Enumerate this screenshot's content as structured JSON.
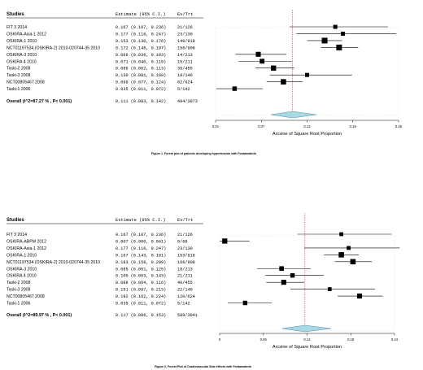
{
  "chart_data": [
    {
      "type": "forest",
      "col_headers": {
        "study": "Studies",
        "estimate": "Estimate (95% C.I.)",
        "evtrt": "Ev/Trt"
      },
      "studies": [
        {
          "name": "FIT 3 2014",
          "ci_text": "0.167 (0.107, 0.236)",
          "evtrt": "21/126",
          "est": 0.167,
          "lo": 0.107,
          "hi": 0.236,
          "weight": 0.55
        },
        {
          "name": "OSKIRA-Asia-1 2012",
          "ci_text": "0.177 (0.116, 0.247)",
          "evtrt": "23/130",
          "est": 0.177,
          "lo": 0.116,
          "hi": 0.247,
          "weight": 0.55
        },
        {
          "name": "OSKIRA-1 2010",
          "ci_text": "0.153 (0.130, 0.176)",
          "evtrt": "140/918",
          "est": 0.153,
          "lo": 0.13,
          "hi": 0.176,
          "weight": 1.0
        },
        {
          "name": "NCT01197534 (OSKIRA-2) 2010-020744-35 2010",
          "ci_text": "0.172 (0.148, 0.197)",
          "evtrt": "156/908",
          "est": 0.172,
          "lo": 0.148,
          "hi": 0.197,
          "weight": 1.0
        },
        {
          "name": "OSKIRA-3 2010",
          "ci_text": "0.066 (0.036, 0.103)",
          "evtrt": "14/213",
          "est": 0.066,
          "lo": 0.036,
          "hi": 0.103,
          "weight": 0.8
        },
        {
          "name": "OSKIRA 4 2010",
          "ci_text": "0.071 (0.040, 0.110)",
          "evtrt": "15/211",
          "est": 0.071,
          "lo": 0.04,
          "hi": 0.11,
          "weight": 0.75
        },
        {
          "name": "Taski-2 2008",
          "ci_text": "0.086 (0.062, 0.113)",
          "evtrt": "39/455",
          "est": 0.086,
          "lo": 0.062,
          "hi": 0.113,
          "weight": 0.85
        },
        {
          "name": "Taski-3 2008",
          "ci_text": "0.130 (0.081, 0.189)",
          "evtrt": "19/146",
          "est": 0.13,
          "lo": 0.081,
          "hi": 0.189,
          "weight": 0.55
        },
        {
          "name": "NCT00805467 2008",
          "ci_text": "0.099 (0.077, 0.124)",
          "evtrt": "62/624",
          "est": 0.099,
          "lo": 0.077,
          "hi": 0.124,
          "weight": 0.9
        },
        {
          "name": "Taski-1 2006",
          "ci_text": "0.035 (0.011, 0.072)",
          "evtrt": "5/142",
          "est": 0.035,
          "lo": 0.011,
          "hi": 0.072,
          "weight": 0.65
        }
      ],
      "overall": {
        "label": "Overall (I^2=87.27 % , P< 0.001)",
        "ci_text": "0.111 (0.083, 0.142)",
        "evtrt": "494/3873",
        "est": 0.111,
        "lo": 0.083,
        "hi": 0.142
      },
      "ref_line": 0.111,
      "xlim": [
        0.01,
        0.25
      ],
      "xticks": [
        0.01,
        0.07,
        0.13,
        0.19,
        0.25
      ],
      "xtick_labels": [
        "0.01",
        "0.07",
        "0.13",
        "0.19",
        "0.25"
      ],
      "xlabel": "Arcsine of Square Root Proportion",
      "caption": "Figure 1. Forest plot of patients developing hypertension with Fostamatinib"
    },
    {
      "type": "forest",
      "col_headers": {
        "study": "Studies",
        "estimate": "Estimate (95% C.I.)",
        "evtrt": "Ev/Trt"
      },
      "studies": [
        {
          "name": "FIT 3 2014",
          "ci_text": "0.167 (0.107, 0.236)",
          "evtrt": "21/126",
          "est": 0.167,
          "lo": 0.107,
          "hi": 0.236,
          "weight": 0.5
        },
        {
          "name": "OSKIRA-ABPM 2012",
          "ci_text": "0.007 (0.000, 0.041)",
          "evtrt": "0/68",
          "est": 0.007,
          "lo": 0.0,
          "hi": 0.041,
          "weight": 0.85
        },
        {
          "name": "OSKIRA-Asia-1 2012",
          "ci_text": "0.177 (0.116, 0.247)",
          "evtrt": "23/130",
          "est": 0.177,
          "lo": 0.116,
          "hi": 0.247,
          "weight": 0.5
        },
        {
          "name": "OSKIRA-1 2010",
          "ci_text": "0.167 (0.143, 0.191)",
          "evtrt": "153/918",
          "est": 0.167,
          "lo": 0.143,
          "hi": 0.191,
          "weight": 0.9
        },
        {
          "name": "NCT01197534 (OSKIRA-2) 2010-020744-35 2010",
          "ci_text": "0.183 (0.158, 0.209)",
          "evtrt": "166/908",
          "est": 0.183,
          "lo": 0.158,
          "hi": 0.209,
          "weight": 0.9
        },
        {
          "name": "OSKIRA-3 2010",
          "ci_text": "0.085 (0.051, 0.125)",
          "evtrt": "18/213",
          "est": 0.085,
          "lo": 0.051,
          "hi": 0.125,
          "weight": 0.7
        },
        {
          "name": "OSKIRA 4 2010",
          "ci_text": "0.100 (0.063, 0.143)",
          "evtrt": "21/211",
          "est": 0.1,
          "lo": 0.063,
          "hi": 0.143,
          "weight": 0.65
        },
        {
          "name": "Taski-2 2008",
          "ci_text": "0.088 (0.064, 0.116)",
          "evtrt": "40/455",
          "est": 0.088,
          "lo": 0.064,
          "hi": 0.116,
          "weight": 0.8
        },
        {
          "name": "Taski-3 2008",
          "ci_text": "0.151 (0.097, 0.213)",
          "evtrt": "22/146",
          "est": 0.151,
          "lo": 0.097,
          "hi": 0.213,
          "weight": 0.5
        },
        {
          "name": "NCT00805467 2008",
          "ci_text": "0.192 (0.162, 0.224)",
          "evtrt": "120/624",
          "est": 0.192,
          "lo": 0.162,
          "hi": 0.224,
          "weight": 0.8
        },
        {
          "name": "Taski-1 2006",
          "ci_text": "0.035 (0.011, 0.072)",
          "evtrt": "5/142",
          "est": 0.035,
          "lo": 0.011,
          "hi": 0.072,
          "weight": 0.65
        }
      ],
      "overall": {
        "label": "Overall (I^2=89.97 % , P< 0.001)",
        "ci_text": "0.117 (0.086, 0.153)",
        "evtrt": "589/3941",
        "est": 0.117,
        "lo": 0.086,
        "hi": 0.153
      },
      "ref_line": 0.117,
      "xlim": [
        0.0,
        0.24
      ],
      "xticks": [
        0.0,
        0.06,
        0.12,
        0.18,
        0.24
      ],
      "xtick_labels": [
        "0",
        "0.06",
        "0.12",
        "0.18",
        "0.24"
      ],
      "xlabel": "Arcsine of Square Root Proportion",
      "caption": "Figure 2. Forest Plot of Cardiovascular Side effects with Fostamatinib"
    }
  ]
}
